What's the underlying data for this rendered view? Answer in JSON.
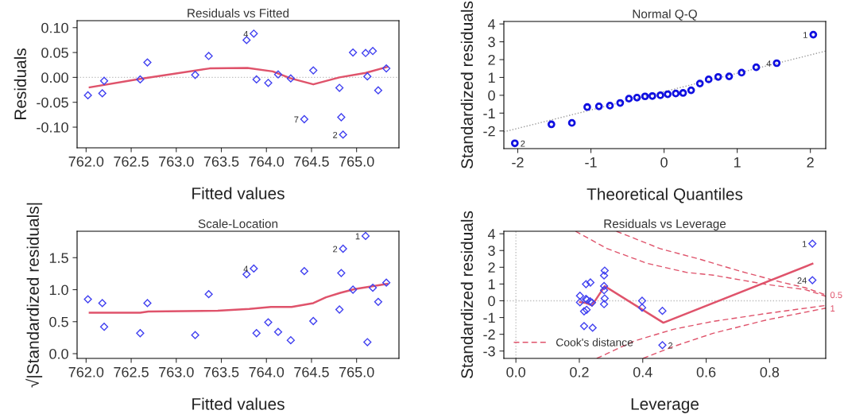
{
  "chart_data": [
    {
      "type": "scatter",
      "title": "Residuals vs Fitted",
      "xlabel": "Fitted values",
      "ylabel": "Residuals",
      "grid": false,
      "legend": false,
      "xlim": [
        761.9,
        765.47
      ],
      "ylim": [
        -0.1415,
        0.114
      ],
      "xticks": [
        {
          "value": 762,
          "label": "762.0"
        },
        {
          "value": 762.5,
          "label": "762.5"
        },
        {
          "value": 763,
          "label": "763.0"
        },
        {
          "value": 763.5,
          "label": "763.5"
        },
        {
          "value": 764,
          "label": "764.0"
        },
        {
          "value": 764.5,
          "label": "764.5"
        },
        {
          "value": 765,
          "label": "765.0"
        }
      ],
      "yticks": [
        {
          "value": -0.1,
          "label": "-0.10"
        },
        {
          "value": -0.05,
          "label": "-0.05"
        },
        {
          "value": 0,
          "label": "0.00"
        },
        {
          "value": 0.05,
          "label": "0.05"
        },
        {
          "value": 0.1,
          "label": "0.10"
        }
      ],
      "ref_lines": [
        {
          "axis": "y",
          "value": 0,
          "color": "#bebebe",
          "line_style": "dotted"
        }
      ],
      "series": [
        {
          "marker": "diamond",
          "color": "#4040f0",
          "x": [
            762.02,
            762.18,
            762.2,
            762.6,
            762.68,
            763.21,
            763.36,
            763.78,
            763.86,
            763.89,
            764.02,
            764.13,
            764.27,
            764.42,
            764.52,
            764.81,
            764.83,
            764.85,
            764.96,
            765.1,
            765.12,
            765.18,
            765.24,
            765.33
          ],
          "values": [
            -0.036,
            -0.032,
            -0.007,
            -0.004,
            0.03,
            0.005,
            0.043,
            0.075,
            0.088,
            -0.004,
            -0.011,
            0.006,
            -0.002,
            -0.084,
            0.014,
            -0.021,
            -0.08,
            -0.115,
            0.05,
            0.049,
            0.002,
            0.053,
            -0.026,
            0.018
          ]
        },
        {
          "type": "line",
          "color": "#df536b",
          "line_style": "solid",
          "x": [
            762.04,
            762.6,
            763.37,
            763.79,
            764.07,
            764.27,
            764.52,
            764.81,
            765.1,
            765.34
          ],
          "values": [
            -0.02,
            -0.003,
            0.018,
            0.019,
            0.012,
            -0.002,
            -0.014,
            0.0,
            0.009,
            0.021
          ]
        }
      ],
      "annotations": [
        {
          "text": "4",
          "x": 763.86,
          "y": 0.088
        },
        {
          "text": "7",
          "x": 764.42,
          "y": -0.084
        },
        {
          "text": "2",
          "x": 764.85,
          "y": -0.115
        }
      ]
    },
    {
      "type": "scatter",
      "title": "Normal Q-Q",
      "xlabel": "Theoretical Quantiles",
      "ylabel": "Standardized residuals",
      "grid": false,
      "legend": false,
      "xlim": [
        -2.19,
        2.21
      ],
      "ylim": [
        -2.99,
        4.14
      ],
      "xticks": [
        -2,
        -1,
        0,
        1,
        2
      ],
      "yticks": [
        -2,
        -1,
        0,
        1,
        2,
        3,
        4
      ],
      "series": [
        {
          "marker": "circle",
          "color": "#1010e0",
          "x": [
            -2.04,
            -1.54,
            -1.26,
            -1.05,
            -0.89,
            -0.74,
            -0.6,
            -0.48,
            -0.37,
            -0.26,
            -0.16,
            -0.05,
            0.05,
            0.16,
            0.26,
            0.37,
            0.49,
            0.61,
            0.74,
            0.89,
            1.06,
            1.26,
            1.54,
            2.04
          ],
          "values": [
            -2.69,
            -1.63,
            -1.55,
            -0.66,
            -0.62,
            -0.58,
            -0.43,
            -0.19,
            -0.13,
            -0.06,
            -0.04,
            0.0,
            0.06,
            0.1,
            0.13,
            0.28,
            0.66,
            0.89,
            1.03,
            1.06,
            1.27,
            1.57,
            1.8,
            3.4
          ]
        },
        {
          "type": "line",
          "color": "#9a9a9a",
          "line_style": "dotted",
          "x": [
            -2.19,
            2.21
          ],
          "values": [
            -2.05,
            2.48
          ]
        }
      ],
      "annotations": [
        {
          "text": "2",
          "x": -2.04,
          "y": -2.69
        },
        {
          "text": "4",
          "x": 1.54,
          "y": 1.8
        },
        {
          "text": "1",
          "x": 2.04,
          "y": 3.4
        }
      ]
    },
    {
      "type": "scatter",
      "title": "Scale-Location",
      "xlabel": "Fitted values",
      "ylabel": "√|Standardized residuals|",
      "grid": false,
      "legend": false,
      "xlim": [
        761.9,
        765.47
      ],
      "ylim": [
        -0.074,
        1.913
      ],
      "xticks": [
        {
          "value": 762,
          "label": "762.0"
        },
        {
          "value": 762.5,
          "label": "762.5"
        },
        {
          "value": 763,
          "label": "763.0"
        },
        {
          "value": 763.5,
          "label": "763.5"
        },
        {
          "value": 764,
          "label": "764.0"
        },
        {
          "value": 764.5,
          "label": "764.5"
        },
        {
          "value": 765,
          "label": "765.0"
        }
      ],
      "yticks": [
        {
          "value": 0,
          "label": "0.0"
        },
        {
          "value": 0.5,
          "label": "0.5"
        },
        {
          "value": 1,
          "label": "1.0"
        },
        {
          "value": 1.5,
          "label": "1.5"
        }
      ],
      "series": [
        {
          "marker": "diamond",
          "color": "#4040f0",
          "x": [
            762.02,
            762.18,
            762.2,
            762.6,
            762.68,
            763.21,
            763.36,
            763.78,
            763.86,
            763.89,
            764.02,
            764.13,
            764.27,
            764.42,
            764.52,
            764.81,
            764.83,
            764.85,
            764.96,
            765.1,
            765.12,
            765.18,
            765.24,
            765.33
          ],
          "values": [
            0.85,
            0.79,
            0.42,
            0.32,
            0.79,
            0.29,
            0.93,
            1.24,
            1.33,
            0.32,
            0.49,
            0.34,
            0.21,
            1.29,
            0.51,
            0.69,
            1.26,
            1.64,
            1.0,
            1.84,
            0.18,
            1.03,
            0.81,
            1.11
          ]
        },
        {
          "type": "line",
          "color": "#df536b",
          "line_style": "solid",
          "x": [
            762.04,
            762.6,
            762.69,
            763.46,
            763.81,
            764.05,
            764.28,
            764.52,
            764.66,
            764.82,
            764.98,
            765.16,
            765.34
          ],
          "values": [
            0.64,
            0.64,
            0.66,
            0.67,
            0.7,
            0.73,
            0.73,
            0.79,
            0.88,
            0.95,
            1.01,
            1.05,
            1.09
          ]
        }
      ],
      "annotations": [
        {
          "text": "4",
          "x": 763.86,
          "y": 1.33
        },
        {
          "text": "2",
          "x": 764.85,
          "y": 1.64
        },
        {
          "text": "1",
          "x": 765.1,
          "y": 1.84
        }
      ]
    },
    {
      "type": "scatter",
      "title": "Residuals vs Leverage",
      "xlabel": "Leverage",
      "ylabel": "Standardized residuals",
      "grid": false,
      "legend": "bottom left",
      "xlim": [
        -0.038,
        0.977
      ],
      "ylim": [
        -3.44,
        4.15
      ],
      "xticks": [
        {
          "value": 0,
          "label": "0.0"
        },
        {
          "value": 0.2,
          "label": "0.2"
        },
        {
          "value": 0.4,
          "label": "0.4"
        },
        {
          "value": 0.6,
          "label": "0.6"
        },
        {
          "value": 0.8,
          "label": "0.8"
        }
      ],
      "yticks": [
        -3,
        -2,
        -1,
        0,
        1,
        2,
        3,
        4
      ],
      "ref_lines": [
        {
          "axis": "y",
          "value": 0,
          "color": "#bebebe",
          "line_style": "dotted"
        },
        {
          "axis": "x",
          "value": 0,
          "color": "#bebebe",
          "line_style": "dotted"
        }
      ],
      "series": [
        {
          "marker": "diamond",
          "color": "#4040f0",
          "x": [
            0.202,
            0.202,
            0.221,
            0.221,
            0.224,
            0.235,
            0.234,
            0.24,
            0.215,
            0.223,
            0.215,
            0.242,
            0.28,
            0.278,
            0.278,
            0.278,
            0.28,
            0.278,
            0.398,
            0.398,
            0.462,
            0.462,
            0.935,
            0.935
          ],
          "values": [
            0.3,
            -0.09,
            0.99,
            0.11,
            0.06,
            1.09,
            -0.03,
            -0.11,
            -0.63,
            -0.54,
            -1.51,
            -1.61,
            1.8,
            1.51,
            0.88,
            0.63,
            0.14,
            -0.2,
            0.0,
            -0.41,
            -0.6,
            -2.65,
            3.41,
            1.23
          ]
        },
        {
          "type": "line",
          "color": "#df536b",
          "line_style": "solid",
          "x": [
            0.202,
            0.221,
            0.24,
            0.28,
            0.465,
            0.935
          ],
          "values": [
            -0.08,
            -0.13,
            -0.28,
            0.87,
            -1.31,
            2.21
          ]
        },
        {
          "type": "line",
          "name": "Cook's distance",
          "color": "#df536b",
          "line_style": "dashed",
          "x": [
            0.188,
            0.288,
            0.413,
            0.539,
            0.622,
            0.789,
            0.914,
            0.977
          ],
          "values": [
            4.15,
            3.11,
            2.24,
            1.69,
            1.53,
            0.98,
            0.66,
            0.27
          ]
        },
        {
          "type": "line",
          "color": "#df536b",
          "line_style": "dashed",
          "x": [
            0.317,
            0.455,
            0.58,
            0.706,
            0.831,
            0.914,
            0.977
          ],
          "values": [
            4.15,
            3.11,
            2.48,
            1.77,
            1.14,
            0.77,
            0.35
          ]
        },
        {
          "type": "line",
          "color": "#df536b",
          "line_style": "dashed",
          "x": [
            0.255,
            0.372,
            0.497,
            0.622,
            0.789,
            0.977
          ],
          "values": [
            -3.44,
            -2.41,
            -1.7,
            -1.23,
            -0.76,
            -0.28
          ]
        },
        {
          "type": "line",
          "color": "#df536b",
          "line_style": "dashed",
          "x": [
            0.401,
            0.497,
            0.622,
            0.789,
            0.977
          ],
          "values": [
            -3.44,
            -2.73,
            -1.94,
            -1.15,
            -0.44
          ]
        }
      ],
      "annotations": [
        {
          "text": "1",
          "x": 0.935,
          "y": 3.41
        },
        {
          "text": "24",
          "x": 0.935,
          "y": 1.23
        },
        {
          "text": "2",
          "x": 0.462,
          "y": -2.65
        },
        {
          "text": "0.5",
          "x": 0.977,
          "y": 0.3
        },
        {
          "text": "1",
          "x": 0.977,
          "y": -0.5
        }
      ]
    }
  ]
}
